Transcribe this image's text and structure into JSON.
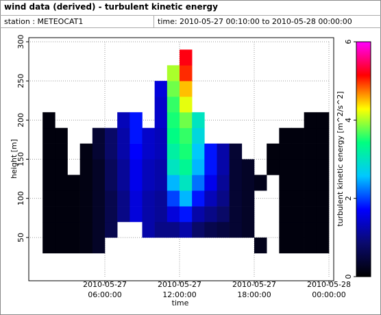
{
  "chart_data": {
    "type": "heatmap",
    "title": "wind data (derived) - turbulent kinetic energy",
    "station": "station : METEOCAT1",
    "period": "time: 2010-05-27 00:10:00 to 2010-05-28 00:00:00",
    "x_label": "time",
    "y_label": "height [m]",
    "colorbar_label": "turbulent kinetic energy [m^2/s^2]",
    "xbins": [
      0,
      1,
      2,
      3,
      4,
      5,
      6,
      7,
      8,
      9,
      10,
      11,
      12,
      13,
      14,
      15,
      16,
      17,
      18,
      19,
      20,
      21,
      22,
      23,
      24
    ],
    "ybins": [
      30,
      50,
      70,
      90,
      110,
      130,
      150,
      170,
      190,
      210,
      230,
      250,
      270,
      290
    ],
    "z": [
      [
        null,
        0.1,
        0.1,
        0.1,
        0.15,
        0.3,
        null,
        null,
        null,
        null,
        null,
        null,
        null,
        null,
        null,
        null,
        null,
        null,
        0.2,
        null,
        0.1,
        0.1,
        0.1,
        0.1
      ],
      [
        null,
        0.1,
        0.1,
        0.1,
        0.15,
        0.3,
        0.6,
        null,
        null,
        1.2,
        1.0,
        1.0,
        1.2,
        0.8,
        0.6,
        0.5,
        0.4,
        0.3,
        null,
        null,
        0.1,
        0.1,
        0.1,
        0.1
      ],
      [
        null,
        0.1,
        0.1,
        0.1,
        0.15,
        0.3,
        0.6,
        1.0,
        1.5,
        1.2,
        1.1,
        1.5,
        1.8,
        1.2,
        1.0,
        0.8,
        0.4,
        0.3,
        null,
        null,
        0.1,
        0.1,
        0.1,
        0.1
      ],
      [
        null,
        0.1,
        0.1,
        0.1,
        0.15,
        0.3,
        0.6,
        1.0,
        1.5,
        1.2,
        1.1,
        2.0,
        2.5,
        1.8,
        1.3,
        1.0,
        0.4,
        0.3,
        null,
        null,
        0.1,
        0.1,
        0.1,
        0.1
      ],
      [
        null,
        0.1,
        0.1,
        0.1,
        0.15,
        0.3,
        0.7,
        1.1,
        1.6,
        1.3,
        1.2,
        2.5,
        3.0,
        2.2,
        1.6,
        1.1,
        0.4,
        0.3,
        0.2,
        null,
        0.1,
        0.1,
        0.1,
        0.1
      ],
      [
        null,
        0.1,
        0.1,
        null,
        0.15,
        0.3,
        0.7,
        1.1,
        1.6,
        1.3,
        1.2,
        3.0,
        3.3,
        2.5,
        1.8,
        1.2,
        0.4,
        0.3,
        null,
        0.1,
        0.1,
        0.1,
        0.1,
        0.1
      ],
      [
        null,
        0.1,
        0.1,
        null,
        0.15,
        0.4,
        0.8,
        1.2,
        1.7,
        1.4,
        1.3,
        3.2,
        3.5,
        2.6,
        1.8,
        1.2,
        0.4,
        null,
        null,
        0.1,
        0.1,
        0.1,
        0.1,
        0.1
      ],
      [
        null,
        0.1,
        0.1,
        null,
        null,
        0.4,
        0.8,
        1.2,
        1.8,
        1.4,
        1.3,
        3.4,
        3.6,
        2.8,
        null,
        null,
        null,
        null,
        null,
        null,
        0.1,
        0.1,
        0.1,
        0.1
      ],
      [
        null,
        0.1,
        null,
        null,
        null,
        null,
        null,
        1.3,
        1.8,
        null,
        1.4,
        3.5,
        3.8,
        3.0,
        null,
        null,
        null,
        null,
        null,
        null,
        null,
        null,
        0.1,
        0.1
      ],
      [
        null,
        null,
        null,
        null,
        null,
        null,
        null,
        null,
        null,
        null,
        1.4,
        3.6,
        4.2,
        null,
        null,
        null,
        null,
        null,
        null,
        null,
        null,
        null,
        null,
        null
      ],
      [
        null,
        null,
        null,
        null,
        null,
        null,
        null,
        null,
        null,
        null,
        1.5,
        3.8,
        4.5,
        null,
        null,
        null,
        null,
        null,
        null,
        null,
        null,
        null,
        null,
        null
      ],
      [
        null,
        null,
        null,
        null,
        null,
        null,
        null,
        null,
        null,
        null,
        null,
        4.0,
        5.0,
        null,
        null,
        null,
        null,
        null,
        null,
        null,
        null,
        null,
        null,
        null
      ],
      [
        null,
        null,
        null,
        null,
        null,
        null,
        null,
        null,
        null,
        null,
        null,
        null,
        5.2,
        null,
        null,
        null,
        null,
        null,
        null,
        null,
        null,
        null,
        null,
        null
      ]
    ],
    "xlim": [
      0,
      24
    ],
    "xticks": [
      {
        "value": 6,
        "date": "2010-05-27",
        "time": "06:00:00"
      },
      {
        "value": 12,
        "date": "2010-05-27",
        "time": "12:00:00"
      },
      {
        "value": 18,
        "date": "2010-05-27",
        "time": "18:00:00"
      },
      {
        "value": 24,
        "date": "2010-05-28",
        "time": "00:00:00"
      }
    ],
    "ylim": [
      0,
      300
    ],
    "yticks": [
      50,
      100,
      150,
      200,
      250,
      300
    ],
    "clim": [
      0,
      6
    ],
    "cticks": [
      0,
      2,
      4,
      6
    ],
    "colormap": [
      "#000000",
      "#0a0a6e",
      "#0000ff",
      "#00c8ff",
      "#00ff80",
      "#ffff00",
      "#ff0000",
      "#ff00ff"
    ],
    "grid": true
  }
}
